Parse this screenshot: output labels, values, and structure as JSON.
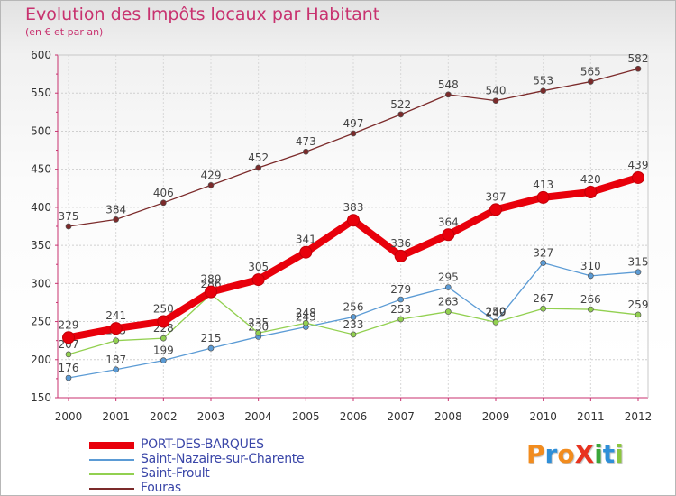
{
  "title": "Evolution des Impôts locaux par Habitant",
  "subtitle": "(en € et par an)",
  "logo": {
    "text": "Proxiti",
    "letters": [
      {
        "ch": "P",
        "color": "#f28c1e"
      },
      {
        "ch": "r",
        "color": "#2f8fd8"
      },
      {
        "ch": "o",
        "color": "#f28c1e"
      },
      {
        "ch": "X",
        "color": "#e8321e"
      },
      {
        "ch": "i",
        "color": "#3aa63a"
      },
      {
        "ch": "t",
        "color": "#2f8fd8"
      },
      {
        "ch": "i",
        "color": "#8cc63f"
      }
    ]
  },
  "chart_data": {
    "type": "line",
    "title": "Evolution des Impôts locaux par Habitant",
    "subtitle": "(en € et par an)",
    "x": [
      "2000",
      "2001",
      "2002",
      "2003",
      "2004",
      "2005",
      "2006",
      "2007",
      "2008",
      "2009",
      "2010",
      "2011",
      "2012"
    ],
    "ylim": [
      150,
      600
    ],
    "yticks": [
      150,
      200,
      250,
      300,
      350,
      400,
      450,
      500,
      550,
      600
    ],
    "grid": true,
    "legend_position": "bottom-left",
    "series": [
      {
        "name": "PORT-DES-BARQUES",
        "color": "#e8000b",
        "values": [
          229,
          241,
          250,
          289,
          305,
          341,
          383,
          336,
          364,
          397,
          413,
          420,
          439
        ]
      },
      {
        "name": "Saint-Nazaire-sur-Charente",
        "color": "#5b9bd5",
        "values": [
          176,
          187,
          199,
          215,
          230,
          243,
          256,
          279,
          295,
          250,
          327,
          310,
          315
        ]
      },
      {
        "name": "Saint-Froult",
        "color": "#92d050",
        "values": [
          207,
          225,
          228,
          286,
          235,
          248,
          233,
          253,
          263,
          249,
          267,
          266,
          259
        ]
      },
      {
        "name": "Fouras",
        "color": "#7b2a2a",
        "values": [
          375,
          384,
          406,
          429,
          452,
          473,
          497,
          522,
          548,
          540,
          553,
          565,
          582
        ]
      }
    ]
  }
}
